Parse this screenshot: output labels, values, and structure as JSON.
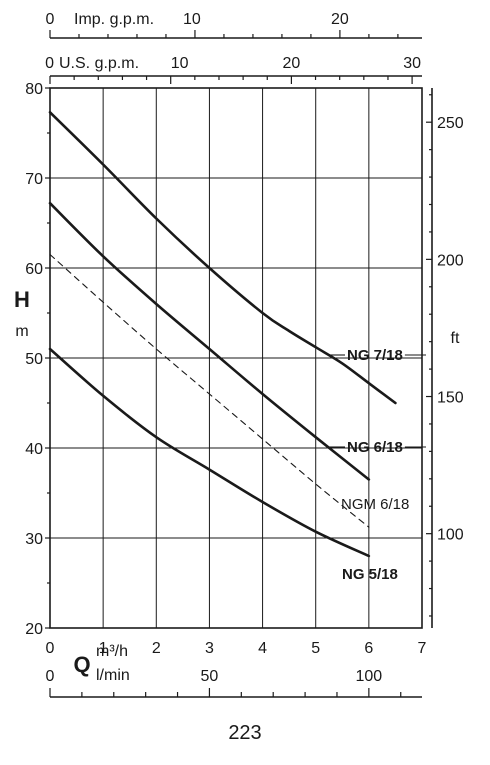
{
  "page": {
    "number": "223"
  },
  "chart_data": {
    "type": "line",
    "title": "",
    "xlim": [
      0,
      7
    ],
    "ylim": [
      20,
      80
    ],
    "grid": true,
    "axes": {
      "y_left": {
        "symbol": "H",
        "unit": "m",
        "ticks": [
          20,
          30,
          40,
          50,
          60,
          70,
          80
        ]
      },
      "y_right": {
        "unit": "ft",
        "ticks": [
          100,
          150,
          200,
          250
        ]
      },
      "x_m3h": {
        "symbol": "Q",
        "unit": "m³/h",
        "ticks": [
          0,
          1,
          2,
          3,
          4,
          5,
          6,
          7
        ]
      },
      "x_lmin": {
        "unit": "l/min",
        "ticks": [
          0,
          50,
          100
        ]
      },
      "x_usgpm": {
        "unit": "U.S. g.p.m.",
        "ticks": [
          0,
          10,
          20,
          30
        ]
      },
      "x_impgpm": {
        "unit": "Imp. g.p.m.",
        "ticks": [
          0,
          10,
          20
        ]
      }
    },
    "series": [
      {
        "name": "NG 7/18",
        "style": "solid",
        "x": [
          0,
          1,
          2,
          3,
          4,
          4.5,
          5,
          5.5,
          6,
          6.5
        ],
        "y": [
          77.3,
          71.5,
          65.5,
          60,
          55,
          53,
          51.2,
          49.4,
          47.2,
          45
        ]
      },
      {
        "name": "NG 6/18",
        "style": "solid",
        "x": [
          0,
          1,
          2,
          3,
          4,
          5,
          6
        ],
        "y": [
          67.2,
          61.3,
          56,
          51,
          46,
          41.2,
          36.5
        ]
      },
      {
        "name": "NGM 6/18",
        "style": "dashed",
        "x": [
          0,
          1,
          2,
          3,
          4,
          5,
          6
        ],
        "y": [
          61.5,
          56.2,
          51,
          46,
          41,
          36,
          31.2
        ]
      },
      {
        "name": "NG 5/18",
        "style": "solid",
        "x": [
          0,
          1,
          2,
          3,
          4,
          5,
          6
        ],
        "y": [
          51,
          45.8,
          41.2,
          37.6,
          34,
          30.7,
          28
        ]
      }
    ]
  }
}
